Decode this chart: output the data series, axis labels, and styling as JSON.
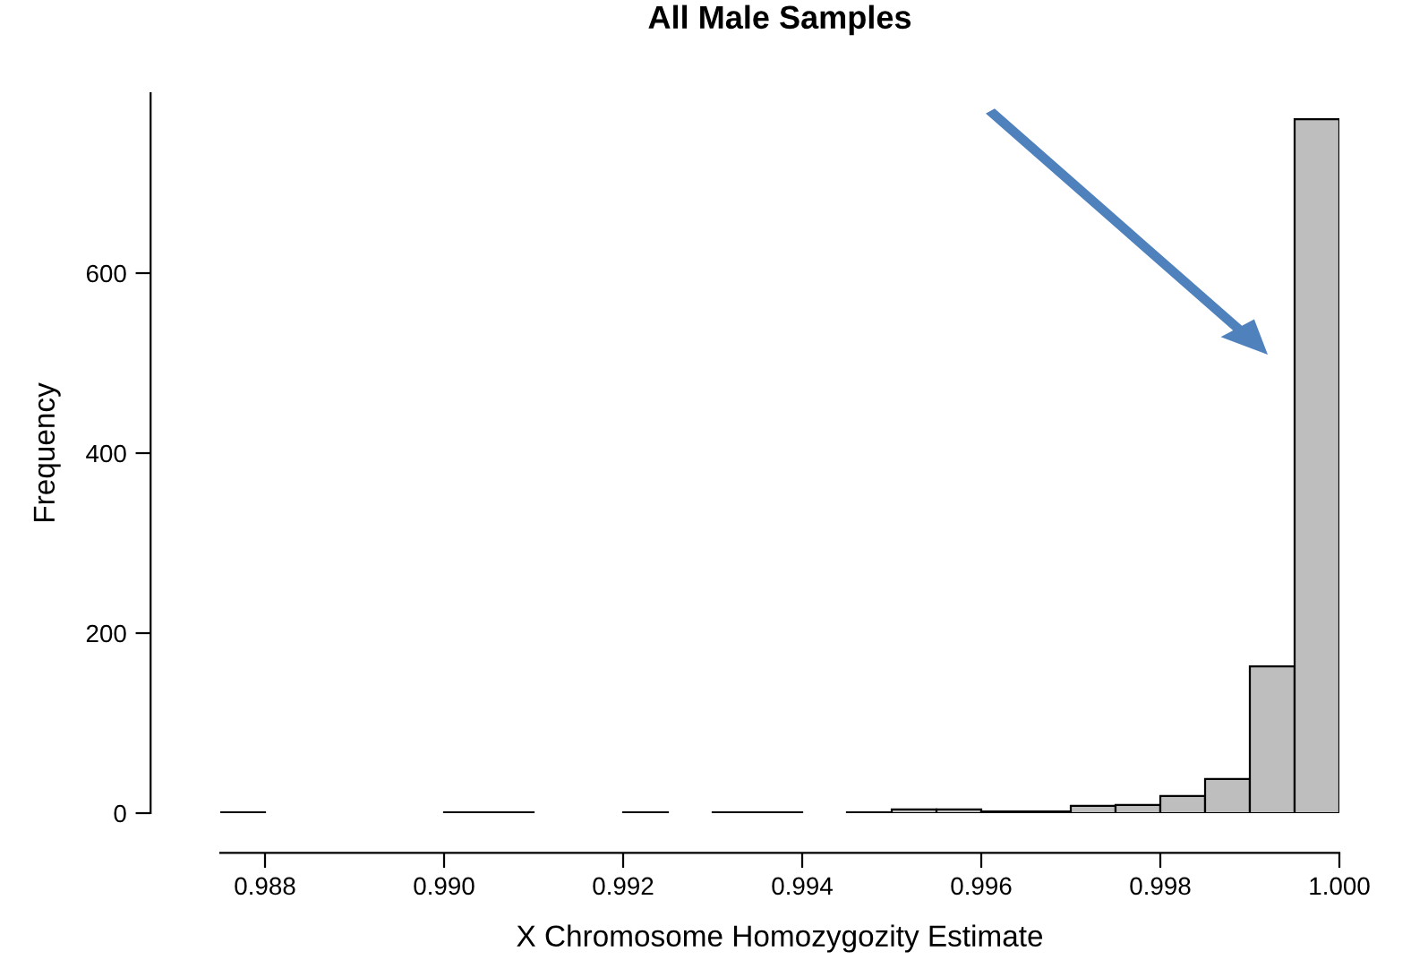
{
  "chart_data": {
    "type": "histogram",
    "title": "All Male Samples",
    "xlabel": "X Chromosome Homozygozity Estimate",
    "ylabel": "Frequency",
    "bins": [
      0.9875,
      0.988,
      0.9885,
      0.989,
      0.9895,
      0.99,
      0.9905,
      0.991,
      0.9915,
      0.992,
      0.9925,
      0.993,
      0.9935,
      0.994,
      0.9945,
      0.995,
      0.9955,
      0.996,
      0.9965,
      0.997,
      0.9975,
      0.998,
      0.9985,
      0.999,
      0.9995,
      1.0
    ],
    "values": [
      1,
      0,
      0,
      0,
      0,
      1,
      1,
      0,
      0,
      1,
      0,
      1,
      1,
      0,
      1,
      4,
      4,
      2,
      2,
      8,
      9,
      19,
      38,
      163,
      771
    ],
    "color": "#bebebe",
    "xlim": [
      0.9875,
      1.0
    ],
    "xticks": [
      {
        "value": 0.988,
        "label": "0.988"
      },
      {
        "value": 0.99,
        "label": "0.990"
      },
      {
        "value": 0.992,
        "label": "0.992"
      },
      {
        "value": 0.994,
        "label": "0.994"
      },
      {
        "value": 0.996,
        "label": "0.996"
      },
      {
        "value": 0.998,
        "label": "0.998"
      },
      {
        "value": 1.0,
        "label": "1.000"
      }
    ],
    "ylim": [
      0,
      800
    ],
    "yticks": [
      0,
      200,
      400,
      600
    ],
    "grid": false,
    "legend": false
  }
}
